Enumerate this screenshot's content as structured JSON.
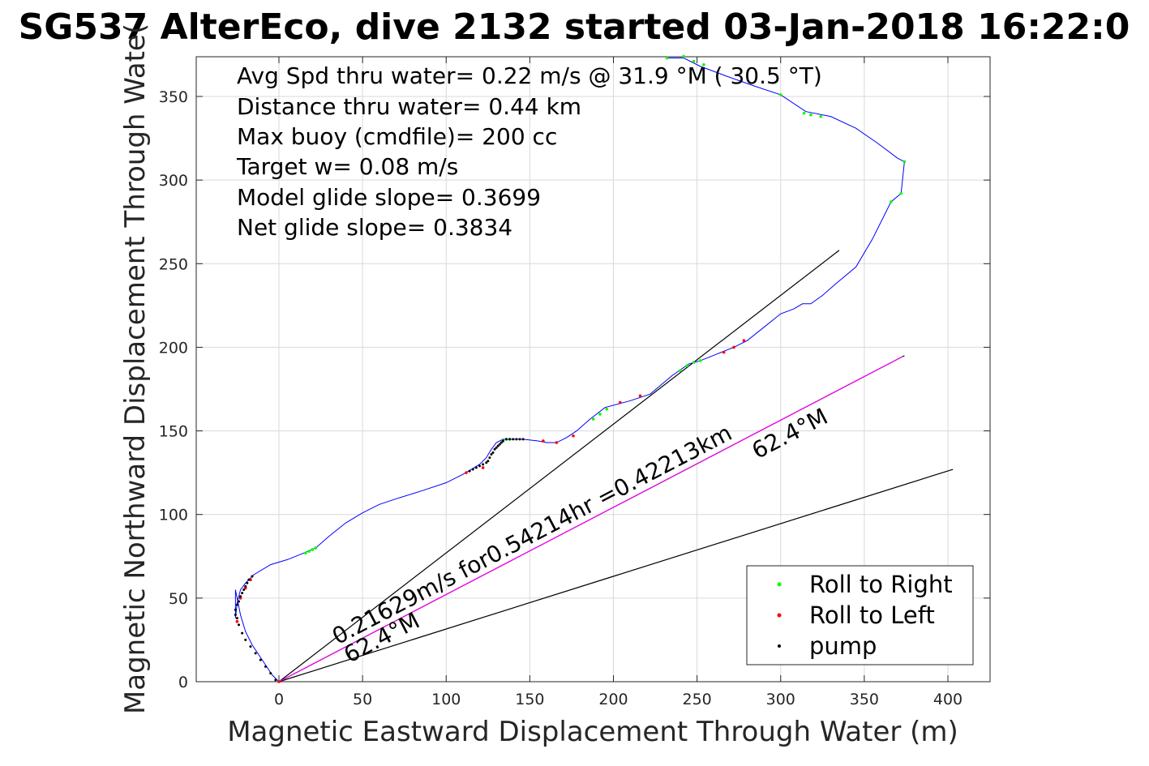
{
  "chart_data": {
    "type": "line",
    "title": "SG537 AlterEco, dive 2132 started 03-Jan-2018 16:22:0",
    "xlabel": "Magnetic Eastward Displacement Through Water (m)",
    "ylabel": "Magnetic Northward Displacement Through Wate(",
    "xlim": [
      -50,
      425
    ],
    "ylim": [
      0,
      375
    ],
    "xticks": [
      "0",
      "50",
      "100",
      "150",
      "200",
      "250",
      "300",
      "350",
      "400"
    ],
    "yticks": [
      "0",
      "50",
      "100",
      "150",
      "200",
      "250",
      "300",
      "350"
    ],
    "grid": true,
    "legend_position": "bottom-right",
    "legend": [
      {
        "label": "Roll to Right",
        "color": "#00ff00"
      },
      {
        "label": "Roll to Left",
        "color": "#ff0000"
      },
      {
        "label": "pump",
        "color": "#000000"
      }
    ],
    "info_lines": [
      "Avg Spd thru water=  0.22 m/s @  31.9 °M ( 30.5 °T)",
      "Distance thru water=  0.44 km",
      "Max buoy (cmdfile)= 200 cc",
      "Target w= 0.08 m/s",
      "Model glide slope= 0.3699",
      "Net glide slope= 0.3834"
    ],
    "annotations": [
      {
        "text": "0.21629m/s for0.54214hr =0.42213km",
        "x": 35,
        "y": 22,
        "angle_deg": 27.6
      },
      {
        "text": "62.4°M",
        "x": 42,
        "y": 11,
        "angle_deg": 27.6
      },
      {
        "text": "62.4°M",
        "x": 286,
        "y": 133,
        "angle_deg": 27.6
      }
    ],
    "reference_lines": [
      {
        "name": "",
        "color": "#000000",
        "x": [
          0,
          335
        ],
        "y": [
          0,
          258
        ]
      },
      {
        "name": "",
        "color": "#000000",
        "x": [
          0,
          403
        ],
        "y": [
          0,
          127
        ]
      },
      {
        "name": "",
        "color": "#000000",
        "x": [
          0,
          374
        ],
        "y": [
          0,
          195
        ]
      },
      {
        "name": "",
        "color": "#ff00ff",
        "x": [
          0,
          373
        ],
        "y": [
          0,
          194.5
        ]
      }
    ],
    "track": {
      "color": "#0000ff",
      "x": [
        0,
        -4,
        -8,
        -12,
        -16,
        -20,
        -23,
        -25,
        -26,
        -26,
        -25,
        -23,
        -20,
        -17,
        -15,
        -5,
        5,
        15,
        22,
        30,
        40,
        50,
        60,
        72,
        85,
        100,
        110,
        115,
        120,
        124,
        127,
        130,
        134,
        138,
        146,
        155,
        160,
        166,
        172,
        178,
        186,
        195,
        210,
        222,
        235,
        245,
        252,
        262,
        272,
        280,
        290,
        300,
        308,
        313,
        318,
        325,
        333,
        345,
        355,
        366,
        372,
        374,
        370,
        358,
        345,
        330,
        315,
        300,
        285,
        268,
        252,
        242,
        232
      ],
      "y": [
        0,
        4,
        10,
        16,
        22,
        30,
        40,
        50,
        55,
        38,
        47,
        55,
        59,
        62,
        64,
        70,
        73,
        77,
        80,
        87,
        95,
        101,
        106,
        110,
        114,
        119,
        124,
        127,
        130,
        134,
        139,
        143,
        145,
        145,
        145,
        144,
        143,
        143,
        146,
        150,
        157,
        164,
        168,
        172,
        183,
        190,
        192,
        196,
        200,
        204,
        212,
        220,
        223,
        226,
        226,
        231,
        238,
        248,
        265,
        287,
        292,
        311,
        313,
        322,
        331,
        338,
        341,
        351,
        356,
        362,
        368,
        373,
        373
      ]
    },
    "roll_right_points": {
      "color": "#00ff00",
      "x": [
        16,
        18,
        20,
        22,
        134,
        136,
        138,
        188,
        192,
        196,
        240,
        244,
        248,
        252,
        300,
        314,
        318,
        324,
        366,
        372,
        374,
        232,
        242,
        248,
        254
      ],
      "y": [
        77,
        78,
        79,
        80,
        144,
        145,
        145,
        157,
        160,
        163,
        186,
        189,
        191,
        192,
        351,
        340,
        339,
        338,
        287,
        292,
        311,
        373,
        374,
        371,
        369
      ]
    },
    "roll_left_points": {
      "color": "#ff0000",
      "x": [
        0,
        -25,
        -23,
        -20,
        -17,
        112,
        122,
        158,
        166,
        176,
        204,
        216,
        266,
        272,
        278
      ],
      "y": [
        0,
        36,
        50,
        56,
        61,
        125,
        128,
        144,
        143,
        147,
        167,
        171,
        197,
        200,
        204
      ]
    },
    "pump_points": {
      "color": "#000000",
      "x": [
        -2,
        -5,
        -8,
        -11,
        -14,
        -17,
        -20,
        -22,
        -24,
        -25,
        -26,
        -26,
        -25,
        -24,
        -23,
        -22,
        -21,
        -20,
        -19,
        -18,
        -16,
        114,
        116,
        118,
        120,
        122,
        124,
        125,
        126,
        127,
        128,
        129,
        130,
        131,
        132,
        133,
        134,
        136,
        138,
        140,
        142,
        144,
        146
      ],
      "y": [
        1,
        5,
        9,
        13,
        17,
        21,
        25,
        29,
        34,
        38,
        40,
        43,
        46,
        48,
        51,
        53,
        55,
        57,
        59,
        61,
        63,
        126,
        127,
        128,
        129,
        130,
        131,
        132,
        134,
        136,
        137,
        139,
        140,
        141,
        142,
        143,
        144,
        145,
        145,
        145,
        145,
        145,
        145
      ]
    }
  }
}
